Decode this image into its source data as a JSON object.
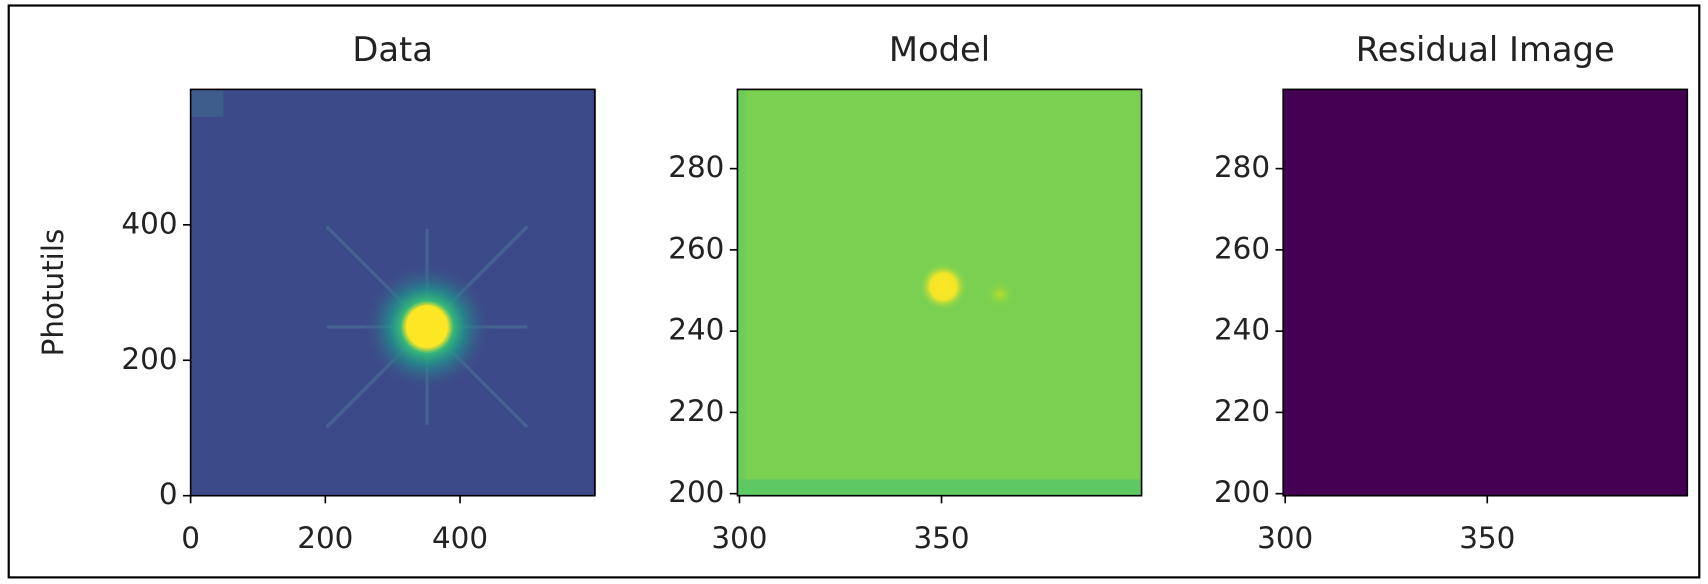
{
  "chart_data": [
    {
      "type": "image",
      "title": "Data",
      "y_label": "Photutils",
      "xlim": [
        0,
        600
      ],
      "ylim": [
        0,
        600
      ],
      "xticks": [
        0,
        200,
        400
      ],
      "yticks": [
        0,
        200,
        400
      ]
    },
    {
      "type": "image",
      "title": "Model",
      "xlim": [
        299.5,
        399.5
      ],
      "ylim": [
        199.5,
        299.5
      ],
      "xticks": [
        300,
        350
      ],
      "yticks": [
        200,
        220,
        240,
        260,
        280
      ]
    },
    {
      "type": "image",
      "title": "Residual Image",
      "xlim": [
        299.5,
        399.5
      ],
      "ylim": [
        199.5,
        299.5
      ],
      "xticks": [
        300,
        350
      ],
      "yticks": [
        200,
        220,
        240,
        260,
        280
      ]
    }
  ]
}
